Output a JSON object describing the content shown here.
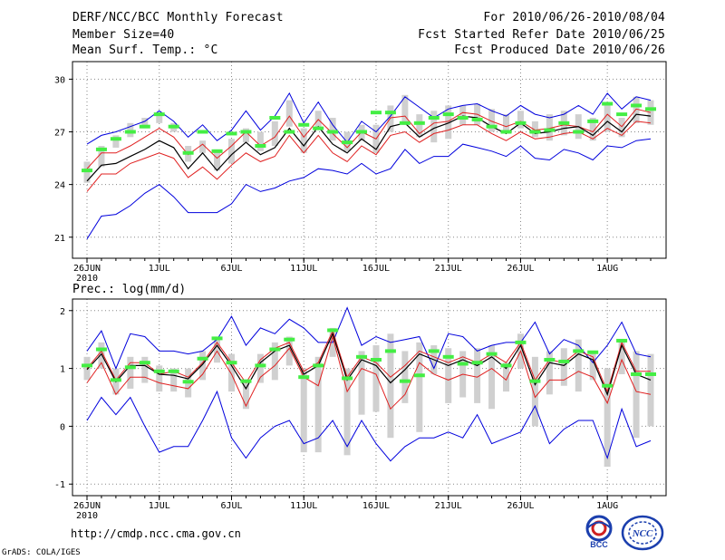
{
  "header": {
    "title": "DERF/NCC/BCC Monthly Forecast",
    "member_size": "Member Size=40",
    "variable": "Mean Surf. Temp.: °C",
    "period": "For 2010/06/26-2010/08/04",
    "start_ref": "Fcst Started Refer Date 2010/06/25",
    "produced": "Fcst Produced Date 2010/06/26"
  },
  "footer": {
    "url": "http://cmdp.ncc.cma.gov.cn",
    "credit": "GrADS: COLA/IGES",
    "logo_bcc": "BCC",
    "logo_ncc": "NCC"
  },
  "colors": {
    "mean": "#000000",
    "band": "#e02020",
    "envelope": "#0000dd",
    "box": "#d0d0d0",
    "obs": "#44ee44",
    "grid": "#888888"
  },
  "chart_data": [
    {
      "type": "line",
      "name": "temperature",
      "title": "Mean Surf. Temp.: °C",
      "xlabel": "",
      "ylabel": "°C",
      "ylim": [
        19.8,
        31
      ],
      "yticks": [
        21,
        24,
        27,
        30
      ],
      "grid": true,
      "n_days": 39,
      "x_labels": [
        {
          "day": 0,
          "text": "26JUN"
        },
        {
          "day": 5,
          "text": "1JUL"
        },
        {
          "day": 10,
          "text": "6JUL"
        },
        {
          "day": 15,
          "text": "11JUL"
        },
        {
          "day": 20,
          "text": "16JUL"
        },
        {
          "day": 25,
          "text": "21JUL"
        },
        {
          "day": 30,
          "text": "26JUL"
        },
        {
          "day": 36,
          "text": "1AUG"
        }
      ],
      "year_label": "2010",
      "series": [
        {
          "name": "max",
          "values": [
            26.3,
            26.8,
            27.0,
            27.3,
            27.6,
            28.2,
            27.6,
            26.7,
            27.4,
            26.5,
            27.1,
            28.2,
            27.1,
            27.9,
            29.2,
            27.5,
            28.7,
            27.4,
            26.4,
            27.6,
            27.0,
            27.9,
            29.0,
            28.4,
            27.8,
            28.3,
            28.5,
            28.6,
            28.2,
            27.9,
            28.5,
            28.0,
            27.8,
            28.0,
            28.5,
            28.0,
            29.2,
            28.3,
            29.0,
            28.8
          ]
        },
        {
          "name": "upper",
          "values": [
            24.9,
            25.8,
            25.8,
            26.2,
            26.7,
            27.2,
            26.7,
            25.7,
            26.3,
            25.5,
            26.2,
            27.0,
            26.2,
            26.7,
            27.9,
            26.7,
            27.7,
            26.9,
            26.1,
            27.0,
            26.6,
            27.8,
            27.9,
            26.9,
            27.5,
            27.6,
            28.1,
            28.0,
            27.6,
            27.3,
            27.6,
            27.1,
            27.2,
            27.4,
            27.3,
            27.0,
            28.0,
            27.3,
            28.3,
            28.1
          ]
        },
        {
          "name": "mean",
          "values": [
            24.2,
            25.1,
            25.2,
            25.6,
            26.0,
            26.5,
            26.1,
            24.9,
            25.8,
            24.8,
            25.7,
            26.4,
            25.7,
            26.1,
            27.2,
            26.2,
            27.3,
            26.3,
            25.8,
            26.6,
            26.0,
            27.3,
            27.5,
            26.7,
            27.2,
            27.5,
            27.9,
            27.8,
            27.3,
            26.9,
            27.5,
            26.9,
            27.0,
            27.2,
            27.3,
            26.8,
            27.6,
            27.0,
            28.0,
            27.9
          ]
        },
        {
          "name": "lower",
          "values": [
            23.6,
            24.6,
            24.6,
            25.2,
            25.5,
            25.8,
            25.5,
            24.4,
            25.0,
            24.3,
            25.1,
            25.8,
            25.3,
            25.6,
            26.8,
            25.8,
            26.8,
            25.8,
            25.3,
            26.2,
            25.7,
            26.8,
            27.0,
            26.4,
            26.9,
            27.1,
            27.4,
            27.4,
            26.9,
            26.5,
            27.0,
            26.6,
            26.7,
            26.9,
            27.0,
            26.6,
            27.2,
            26.8,
            27.6,
            27.5
          ]
        },
        {
          "name": "min",
          "values": [
            20.9,
            22.2,
            22.3,
            22.8,
            23.5,
            24.0,
            23.3,
            22.4,
            22.4,
            22.4,
            22.9,
            24.0,
            23.6,
            23.8,
            24.2,
            24.4,
            24.9,
            24.8,
            24.6,
            25.2,
            24.6,
            24.9,
            26.0,
            25.2,
            25.6,
            25.6,
            26.3,
            26.1,
            25.9,
            25.6,
            26.2,
            25.5,
            25.4,
            26.0,
            25.8,
            25.4,
            26.2,
            26.1,
            26.5,
            26.6
          ]
        }
      ],
      "boxes": [
        [
          24.1,
          25.3
        ],
        [
          25.0,
          26.2
        ],
        [
          26.1,
          26.8
        ],
        [
          26.7,
          27.5
        ],
        [
          27.2,
          27.8
        ],
        [
          27.5,
          28.0
        ],
        [
          27.0,
          27.5
        ],
        [
          25.3,
          26.2
        ],
        [
          25.8,
          26.5
        ],
        [
          24.8,
          26.0
        ],
        [
          25.2,
          26.6
        ],
        [
          26.4,
          27.2
        ],
        [
          25.9,
          27.0
        ],
        [
          26.2,
          27.6
        ],
        [
          27.3,
          28.8
        ],
        [
          25.8,
          27.2
        ],
        [
          27.2,
          28.2
        ],
        [
          26.5,
          27.8
        ],
        [
          25.9,
          27.0
        ],
        [
          26.5,
          27.4
        ],
        [
          25.8,
          27.4
        ],
        [
          27.0,
          28.5
        ],
        [
          27.4,
          29.1
        ],
        [
          26.7,
          28.0
        ],
        [
          26.4,
          28.2
        ],
        [
          26.6,
          28.5
        ],
        [
          27.4,
          28.5
        ],
        [
          27.4,
          28.6
        ],
        [
          27.0,
          28.3
        ],
        [
          26.9,
          28.0
        ],
        [
          27.2,
          28.2
        ],
        [
          26.7,
          27.6
        ],
        [
          26.5,
          28.0
        ],
        [
          26.8,
          28.2
        ],
        [
          26.6,
          28.0
        ],
        [
          26.5,
          27.8
        ],
        [
          27.0,
          28.6
        ],
        [
          26.7,
          27.8
        ],
        [
          27.5,
          29.0
        ],
        [
          27.4,
          28.8
        ]
      ],
      "observed": [
        24.8,
        26.0,
        26.6,
        27.0,
        27.3,
        28.0,
        27.3,
        25.8,
        27.0,
        25.9,
        26.9,
        27.0,
        26.2,
        27.8,
        27.0,
        27.4,
        27.2,
        27.0,
        26.4,
        27.0,
        28.1,
        28.1,
        27.5,
        27.5,
        27.8,
        28.0,
        27.8,
        27.7,
        27.3,
        27.0,
        27.5,
        27.0,
        27.1,
        27.5,
        27.0,
        27.6,
        28.6,
        28.0,
        28.5,
        28.3
      ]
    },
    {
      "type": "line",
      "name": "precipitation",
      "title": "Prec.: log(mm/d)",
      "xlabel": "",
      "ylabel": "log(mm/d)",
      "ylim": [
        -1.2,
        2.2
      ],
      "yticks": [
        -1,
        0,
        1,
        2
      ],
      "grid": true,
      "n_days": 39,
      "x_labels": [
        {
          "day": 0,
          "text": "26JUN"
        },
        {
          "day": 5,
          "text": "1JUL"
        },
        {
          "day": 10,
          "text": "6JUL"
        },
        {
          "day": 15,
          "text": "11JUL"
        },
        {
          "day": 20,
          "text": "16JUL"
        },
        {
          "day": 25,
          "text": "21JUL"
        },
        {
          "day": 30,
          "text": "26JUL"
        },
        {
          "day": 36,
          "text": "1AUG"
        }
      ],
      "year_label": "2010",
      "series": [
        {
          "name": "max",
          "values": [
            1.3,
            1.65,
            1.0,
            1.6,
            1.55,
            1.3,
            1.3,
            1.25,
            1.3,
            1.5,
            1.9,
            1.4,
            1.7,
            1.6,
            1.85,
            1.7,
            1.45,
            1.45,
            2.05,
            1.4,
            1.55,
            1.45,
            1.5,
            1.55,
            1.0,
            1.6,
            1.55,
            1.3,
            1.4,
            1.45,
            1.45,
            1.8,
            1.25,
            1.5,
            1.4,
            1.1,
            1.4,
            1.8,
            1.25,
            1.2
          ]
        },
        {
          "name": "upper",
          "values": [
            1.0,
            1.3,
            0.8,
            1.1,
            1.1,
            0.9,
            0.95,
            0.85,
            1.1,
            1.45,
            1.1,
            0.75,
            1.15,
            1.35,
            1.45,
            0.95,
            1.1,
            1.65,
            0.85,
            1.2,
            1.1,
            0.85,
            1.05,
            1.3,
            1.2,
            1.1,
            1.2,
            1.1,
            1.25,
            1.1,
            1.45,
            0.8,
            1.15,
            1.1,
            1.3,
            1.2,
            0.6,
            1.45,
            0.95,
            0.95
          ]
        },
        {
          "name": "mean",
          "values": [
            0.98,
            1.25,
            0.77,
            1.05,
            1.05,
            0.9,
            0.88,
            0.82,
            1.07,
            1.4,
            1.05,
            0.65,
            1.1,
            1.3,
            1.4,
            0.9,
            1.05,
            1.6,
            0.8,
            1.15,
            1.05,
            0.75,
            0.98,
            1.25,
            1.15,
            1.05,
            1.15,
            1.05,
            1.2,
            1.0,
            1.4,
            0.72,
            1.1,
            1.05,
            1.25,
            1.15,
            0.55,
            1.4,
            0.9,
            0.8
          ]
        },
        {
          "name": "lower",
          "values": [
            0.75,
            1.1,
            0.55,
            0.85,
            0.85,
            0.75,
            0.7,
            0.65,
            0.9,
            1.3,
            0.9,
            0.35,
            0.85,
            1.05,
            1.35,
            0.85,
            0.7,
            1.55,
            0.6,
            1.0,
            0.9,
            0.3,
            0.55,
            1.1,
            0.9,
            0.8,
            0.9,
            0.85,
            1.0,
            0.8,
            1.3,
            0.5,
            0.8,
            0.8,
            0.95,
            0.85,
            0.4,
            1.15,
            0.6,
            0.55
          ]
        },
        {
          "name": "min",
          "values": [
            0.1,
            0.5,
            0.2,
            0.5,
            0.0,
            -0.45,
            -0.35,
            -0.35,
            0.1,
            0.6,
            -0.2,
            -0.55,
            -0.2,
            0.0,
            0.1,
            -0.3,
            -0.2,
            0.1,
            -0.35,
            0.1,
            -0.3,
            -0.6,
            -0.35,
            -0.2,
            -0.2,
            -0.1,
            -0.2,
            0.2,
            -0.3,
            -0.2,
            -0.1,
            0.35,
            -0.3,
            -0.05,
            0.1,
            0.1,
            -0.55,
            0.3,
            -0.35,
            -0.25
          ]
        }
      ],
      "boxes": [
        [
          0.8,
          1.2
        ],
        [
          1.0,
          1.45
        ],
        [
          0.55,
          1.0
        ],
        [
          0.65,
          1.2
        ],
        [
          0.75,
          1.2
        ],
        [
          0.6,
          1.05
        ],
        [
          0.6,
          1.0
        ],
        [
          0.5,
          1.0
        ],
        [
          0.8,
          1.3
        ],
        [
          1.1,
          1.55
        ],
        [
          0.6,
          1.25
        ],
        [
          0.3,
          0.8
        ],
        [
          0.75,
          1.25
        ],
        [
          0.8,
          1.45
        ],
        [
          1.05,
          1.55
        ],
        [
          -0.45,
          1.0
        ],
        [
          -0.45,
          1.2
        ],
        [
          1.2,
          1.7
        ],
        [
          -0.5,
          1.0
        ],
        [
          0.2,
          1.3
        ],
        [
          0.25,
          1.4
        ],
        [
          -0.2,
          1.6
        ],
        [
          0.4,
          1.3
        ],
        [
          -0.1,
          1.45
        ],
        [
          0.9,
          1.4
        ],
        [
          0.4,
          1.35
        ],
        [
          0.5,
          1.3
        ],
        [
          0.4,
          1.35
        ],
        [
          0.3,
          1.4
        ],
        [
          0.6,
          1.1
        ],
        [
          1.0,
          1.6
        ],
        [
          0.0,
          1.2
        ],
        [
          0.55,
          1.3
        ],
        [
          0.7,
          1.35
        ],
        [
          0.6,
          1.5
        ],
        [
          0.8,
          1.3
        ],
        [
          -0.7,
          1.0
        ],
        [
          0.9,
          1.5
        ],
        [
          -0.2,
          1.3
        ],
        [
          0.0,
          1.25
        ]
      ],
      "observed": [
        1.05,
        1.33,
        0.8,
        1.02,
        1.1,
        0.95,
        0.95,
        0.77,
        1.17,
        1.52,
        1.1,
        0.78,
        1.05,
        1.33,
        1.5,
        0.85,
        1.05,
        1.66,
        0.83,
        1.2,
        1.15,
        1.3,
        0.78,
        0.88,
        1.3,
        1.2,
        1.08,
        1.1,
        1.25,
        1.05,
        1.45,
        0.78,
        1.15,
        1.12,
        1.3,
        1.28,
        0.7,
        1.48,
        0.9,
        0.9
      ]
    }
  ]
}
